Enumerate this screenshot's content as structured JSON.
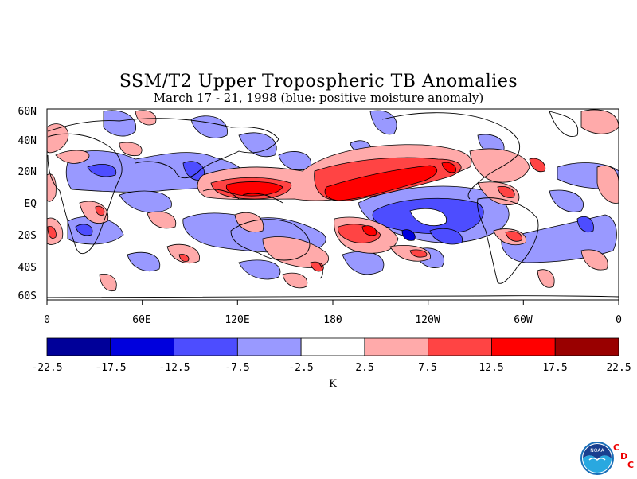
{
  "title": "SSM/T2 Upper Tropospheric TB Anomalies",
  "subtitle": "March 17 - 21, 1998 (blue: positive moisture anomaly)",
  "lat_labels": [
    "60N",
    "40N",
    "20N",
    "EQ",
    "20S",
    "40S",
    "60S"
  ],
  "lon_labels": [
    "0",
    "60E",
    "120E",
    "180",
    "120W",
    "60W",
    "0"
  ],
  "colorbar": {
    "ticks": [
      "-22.5",
      "-17.5",
      "-12.5",
      "-7.5",
      "-2.5",
      "2.5",
      "7.5",
      "12.5",
      "17.5",
      "22.5"
    ],
    "colors": [
      "#000099",
      "#0000dd",
      "#4d4dff",
      "#9999ff",
      "#ffffff",
      "#ffaaaa",
      "#ff4444",
      "#ff0000",
      "#990000"
    ],
    "unit": "K"
  },
  "colors": {
    "blue_light": "#9999ff",
    "blue_mid": "#4d4dff",
    "red_light": "#ffaaaa",
    "red_mid": "#ff4444",
    "red_strong": "#ff0000"
  },
  "logo": {
    "noaa_text": "NOAA",
    "cdc_letters": [
      "C",
      "D",
      "C"
    ]
  }
}
